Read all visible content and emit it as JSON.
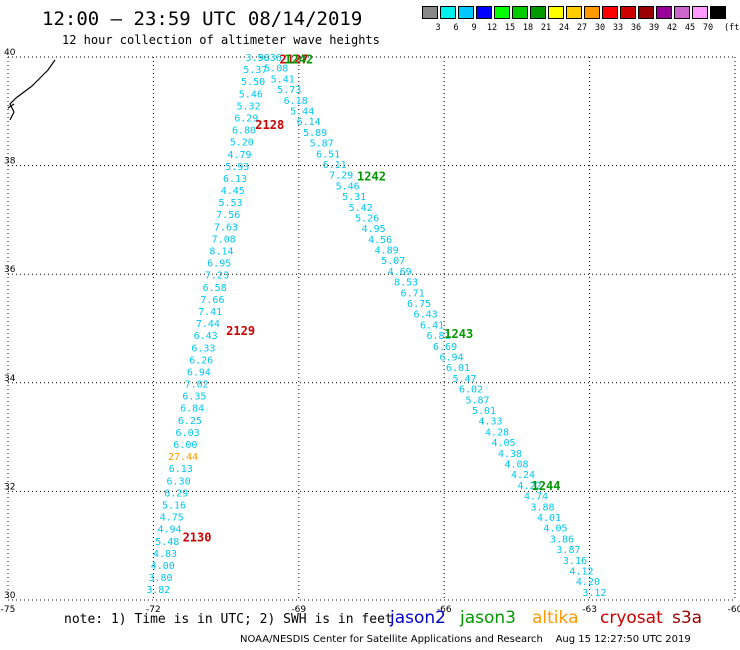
{
  "title": "12:00 — 23:59 UTC 08/14/2019",
  "subtitle": "12 hour collection of altimeter wave heights",
  "color_scale": {
    "unit": "(ft)",
    "bins": [
      {
        "label": "3",
        "color": "#888888"
      },
      {
        "label": "6",
        "color": "#00f0f0"
      },
      {
        "label": "9",
        "color": "#00c8ff"
      },
      {
        "label": "12",
        "color": "#0000ff"
      },
      {
        "label": "15",
        "color": "#00ff00"
      },
      {
        "label": "18",
        "color": "#00cc00"
      },
      {
        "label": "21",
        "color": "#009900"
      },
      {
        "label": "24",
        "color": "#ffff00"
      },
      {
        "label": "27",
        "color": "#ffcc00"
      },
      {
        "label": "30",
        "color": "#ff9900"
      },
      {
        "label": "33",
        "color": "#ff0000"
      },
      {
        "label": "36",
        "color": "#cc0000"
      },
      {
        "label": "39",
        "color": "#990000"
      },
      {
        "label": "42",
        "color": "#990099"
      },
      {
        "label": "45",
        "color": "#cc66cc"
      },
      {
        "label": "70",
        "color": "#ff99ff"
      },
      {
        "label": "",
        "color": "#000000"
      }
    ]
  },
  "chart_data": {
    "type": "scatter",
    "x_ticks": [
      "-75",
      "-72",
      "-69",
      "-66",
      "-63",
      "-60"
    ],
    "y_ticks": [
      "30",
      "32",
      "34",
      "36",
      "38",
      "40"
    ],
    "xlim": [
      -75,
      -60
    ],
    "ylim": [
      30,
      40
    ],
    "grid": true,
    "track_left": {
      "lon_start": -69.85,
      "lat_start": 40.0,
      "lon_end": -71.9,
      "lat_end": 30.2,
      "values": [
        "3.98",
        "5.37",
        "5.50",
        "5.46",
        "5.32",
        "6.29",
        "6.80",
        "5.20",
        "4.79",
        "5.93",
        "6.13",
        "4.45",
        "5.53",
        "7.56",
        "7.63",
        "7.08",
        "8.14",
        "6.95",
        "7.23",
        "6.58",
        "7.66",
        "7.41",
        "7.44",
        "6.43",
        "6.33",
        "6.26",
        "6.94",
        "7.02",
        "6.35",
        "6.84",
        "6.25",
        "6.03",
        "6.00",
        "27.44",
        "6.13",
        "6.30",
        "6.29",
        "5.16",
        "4.75",
        "4.94",
        "5.48",
        "4.83",
        "4.00",
        "3.80",
        "3.82"
      ],
      "highlight_index": 33,
      "highlight_color": "#ff9900"
    },
    "track_right": {
      "lon_start": -69.6,
      "lat_start": 40.0,
      "lon_end": -62.9,
      "lat_end": 30.15,
      "values": [
        "5.36",
        "5.08",
        "5.41",
        "5.73",
        "6.18",
        "5.44",
        "6.14",
        "5.89",
        "5.87",
        "6.51",
        "6.11",
        "7.29",
        "5.46",
        "5.31",
        "5.42",
        "5.26",
        "4.95",
        "4.56",
        "4.89",
        "5.07",
        "4.69",
        "8.53",
        "6.71",
        "6.75",
        "6.43",
        "6.41",
        "6.81",
        "6.69",
        "6.94",
        "6.01",
        "5.47",
        "6.02",
        "5.87",
        "5.01",
        "4.33",
        "4.28",
        "4.05",
        "4.38",
        "4.08",
        "4.24",
        "4.22",
        "4.74",
        "3.88",
        "4.01",
        "4.05",
        "3.86",
        "3.87",
        "3.16",
        "4.12",
        "4.20",
        "3.12"
      ]
    },
    "pass_labels": [
      {
        "text": "1242",
        "color": "#009900",
        "lon": -67.5,
        "lat": 37.8
      },
      {
        "text": "1243",
        "color": "#009900",
        "lon": -65.7,
        "lat": 34.9
      },
      {
        "text": "1244",
        "color": "#009900",
        "lon": -63.9,
        "lat": 32.1
      },
      {
        "text": "2127",
        "color": "#cc0000",
        "lon": -69.1,
        "lat": 39.95
      },
      {
        "text": "1242",
        "color": "#009900",
        "lon": -69.0,
        "lat": 39.95
      },
      {
        "text": "2128",
        "color": "#cc0000",
        "lon": -69.6,
        "lat": 38.75
      },
      {
        "text": "2129",
        "color": "#cc0000",
        "lon": -70.2,
        "lat": 34.95
      },
      {
        "text": "2130",
        "color": "#cc0000",
        "lon": -71.1,
        "lat": 31.15
      }
    ]
  },
  "note": "note: 1) Time is in UTC; 2) SWH is in feet",
  "legend": [
    {
      "name": "jason2",
      "color": "#0000cc"
    },
    {
      "name": "jason3",
      "color": "#009900"
    },
    {
      "name": "altika",
      "color": "#ff9900"
    },
    {
      "name": "cryosat",
      "color": "#cc0000"
    },
    {
      "name": "s3a",
      "color": "#990000"
    }
  ],
  "footer": "NOAA/NESDIS Center for Satellite Applications and Research    Aug 15 12:27:50 UTC 2019"
}
